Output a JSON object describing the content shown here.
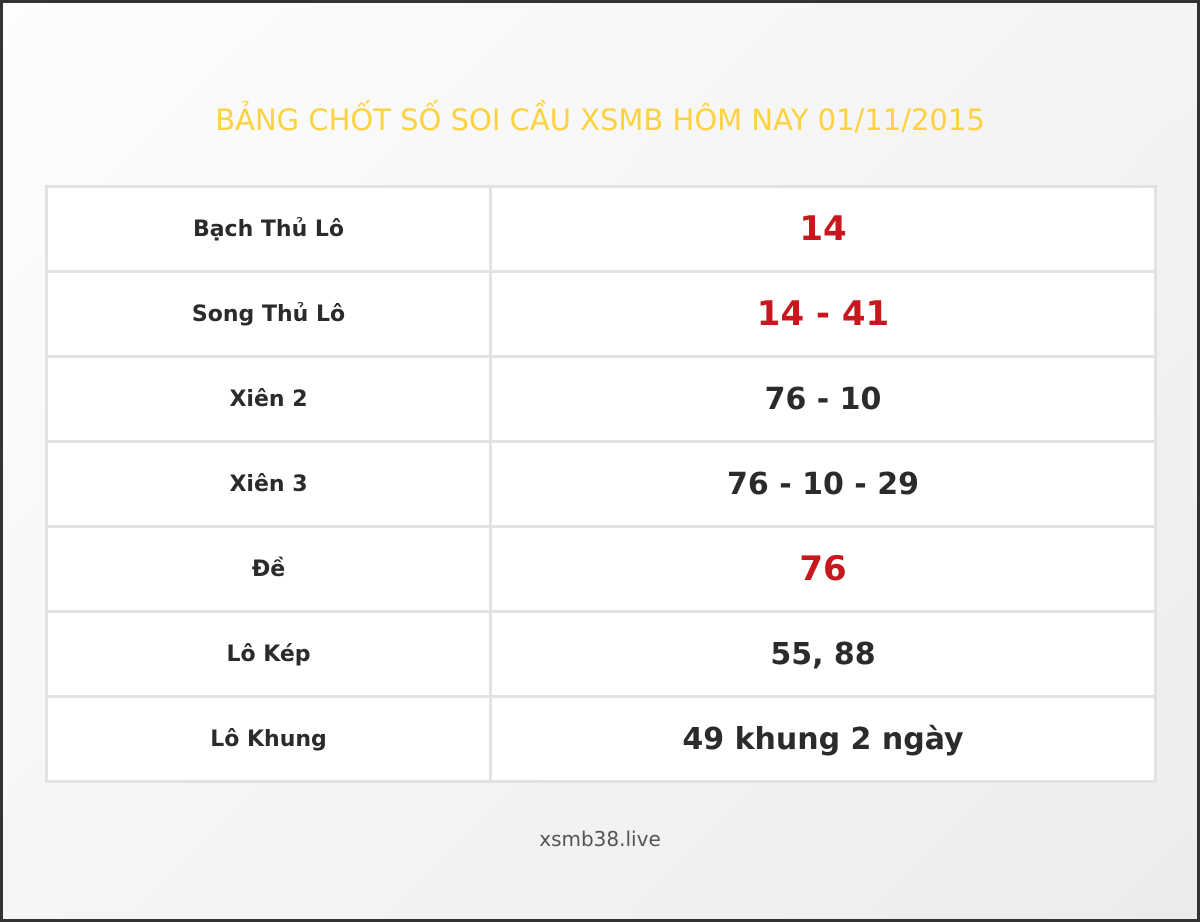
{
  "title": "BẢNG CHỐT SỐ SOI CẦU XSMB HÔM NAY 01/11/2015",
  "colors": {
    "title": "#fdd240",
    "highlight": "#c8171e",
    "text": "#2b2b2b"
  },
  "rows": [
    {
      "label": "Bạch Thủ Lô",
      "value": "14",
      "highlight": true
    },
    {
      "label": "Song Thủ Lô",
      "value": "14 - 41",
      "highlight": true
    },
    {
      "label": "Xiên 2",
      "value": "76 - 10",
      "highlight": false
    },
    {
      "label": "Xiên 3",
      "value": "76 - 10 - 29",
      "highlight": false
    },
    {
      "label": "Đề",
      "value": "76",
      "highlight": true
    },
    {
      "label": "Lô Kép",
      "value": "55, 88",
      "highlight": false
    },
    {
      "label": "Lô Khung",
      "value": "49 khung 2 ngày",
      "highlight": false
    }
  ],
  "footer": "xsmb38.live"
}
